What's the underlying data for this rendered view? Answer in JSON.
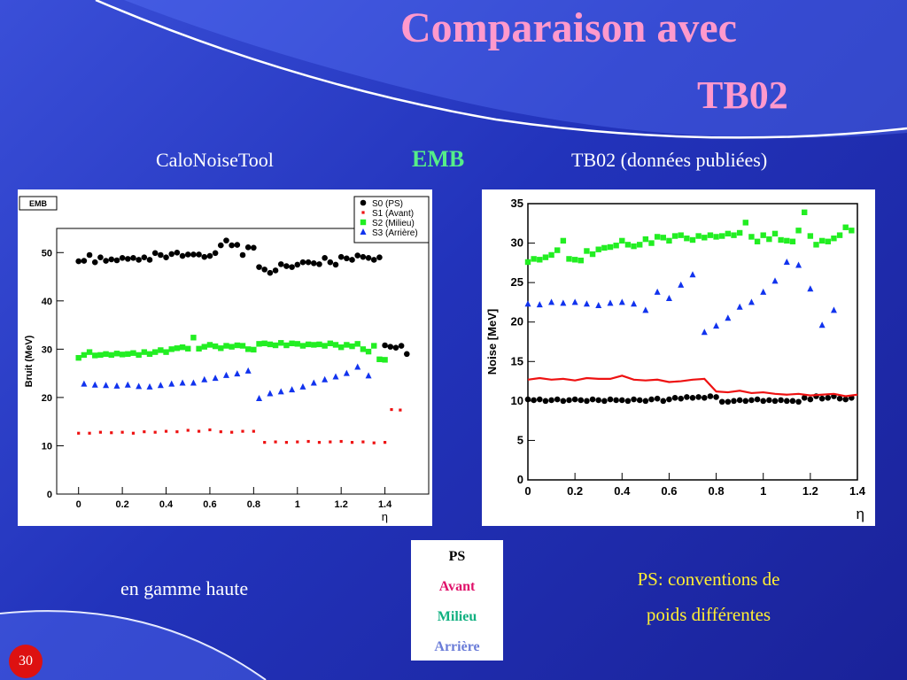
{
  "title_line1": "Comparaison avec",
  "title_line2": "TB02",
  "label_left": "CaloNoiseTool",
  "label_center": "EMB",
  "label_right": "TB02 (données publiées)",
  "note_left": "en gamme haute",
  "note_right": "PS: conventions de poids différentes",
  "legend": {
    "ps": "PS",
    "avant": "Avant",
    "milieu": "Milieu",
    "arriere": "Arrière"
  },
  "page_number": "30",
  "colors": {
    "title": "#ff99cc",
    "emb": "#55ee88",
    "ps": "#000000",
    "avant": "#e0106a",
    "milieu": "#10b080",
    "arriere": "#6a7cd8",
    "note": "#ffee33"
  },
  "chart_data": [
    {
      "type": "scatter",
      "box_label": "EMB",
      "xlabel": "η",
      "ylabel": "Bruit (MeV)",
      "xlim": [
        -0.1,
        1.6
      ],
      "ylim": [
        0,
        55
      ],
      "xticks": [
        "0",
        "0.2",
        "0.4",
        "0.6",
        "0.8",
        "1",
        "1.2",
        "1.4"
      ],
      "yticks": [
        "0",
        "10",
        "20",
        "30",
        "40",
        "50"
      ],
      "legend_position": "top-right",
      "series": [
        {
          "name": "S0 (PS)",
          "marker": "circle",
          "color": "#000000",
          "x": [
            0.0,
            0.025,
            0.05,
            0.075,
            0.1,
            0.125,
            0.15,
            0.175,
            0.2,
            0.225,
            0.25,
            0.275,
            0.3,
            0.325,
            0.35,
            0.375,
            0.4,
            0.425,
            0.45,
            0.475,
            0.5,
            0.525,
            0.55,
            0.575,
            0.6,
            0.625,
            0.65,
            0.675,
            0.7,
            0.725,
            0.75,
            0.775,
            0.8,
            0.825,
            0.85,
            0.875,
            0.9,
            0.925,
            0.95,
            0.975,
            1.0,
            1.025,
            1.05,
            1.075,
            1.1,
            1.125,
            1.15,
            1.175,
            1.2,
            1.225,
            1.25,
            1.275,
            1.3,
            1.325,
            1.35,
            1.375,
            1.4,
            1.425,
            1.45,
            1.475,
            1.5
          ],
          "y": [
            48.2,
            48.3,
            49.5,
            48.0,
            49.0,
            48.3,
            48.6,
            48.4,
            48.9,
            48.7,
            48.9,
            48.5,
            49.0,
            48.5,
            49.9,
            49.5,
            49.0,
            49.7,
            50.0,
            49.3,
            49.6,
            49.6,
            49.6,
            49.1,
            49.3,
            49.9,
            51.5,
            52.5,
            51.5,
            51.6,
            49.5,
            51.1,
            51.0,
            47.0,
            46.5,
            45.8,
            46.3,
            47.6,
            47.2,
            47.0,
            47.5,
            48.0,
            48.0,
            47.8,
            47.6,
            48.9,
            48.0,
            47.5,
            49.1,
            48.8,
            48.5,
            49.4,
            49.1,
            48.9,
            48.5,
            49.0,
            30.8,
            30.5,
            30.3,
            30.7,
            29.0
          ]
        },
        {
          "name": "S1 (Avant)",
          "marker": "dot",
          "color": "#ee1111",
          "x": [
            0.0,
            0.05,
            0.1,
            0.15,
            0.2,
            0.25,
            0.3,
            0.35,
            0.4,
            0.45,
            0.5,
            0.55,
            0.6,
            0.65,
            0.7,
            0.75,
            0.8,
            0.85,
            0.9,
            0.95,
            1.0,
            1.05,
            1.1,
            1.15,
            1.2,
            1.25,
            1.3,
            1.35,
            1.4,
            1.43,
            1.47
          ],
          "y": [
            12.6,
            12.6,
            12.8,
            12.7,
            12.8,
            12.6,
            12.9,
            12.8,
            13.0,
            12.9,
            13.2,
            13.0,
            13.3,
            12.9,
            12.8,
            13.0,
            13.0,
            10.7,
            10.8,
            10.7,
            10.8,
            10.9,
            10.7,
            10.8,
            10.9,
            10.7,
            10.8,
            10.6,
            10.7,
            17.5,
            17.4
          ]
        },
        {
          "name": "S2 (Milieu)",
          "marker": "square",
          "color": "#22ee22",
          "x": [
            0.0,
            0.025,
            0.05,
            0.075,
            0.1,
            0.125,
            0.15,
            0.175,
            0.2,
            0.225,
            0.25,
            0.275,
            0.3,
            0.325,
            0.35,
            0.375,
            0.4,
            0.425,
            0.45,
            0.475,
            0.5,
            0.525,
            0.55,
            0.575,
            0.6,
            0.625,
            0.65,
            0.675,
            0.7,
            0.725,
            0.75,
            0.775,
            0.8,
            0.825,
            0.85,
            0.875,
            0.9,
            0.925,
            0.95,
            0.975,
            1.0,
            1.025,
            1.05,
            1.075,
            1.1,
            1.125,
            1.15,
            1.175,
            1.2,
            1.225,
            1.25,
            1.275,
            1.3,
            1.325,
            1.35,
            1.375,
            1.4
          ],
          "y": [
            28.2,
            28.8,
            29.4,
            28.7,
            28.8,
            29.0,
            28.8,
            29.1,
            28.9,
            29.0,
            29.2,
            28.8,
            29.4,
            29.0,
            29.4,
            29.8,
            29.4,
            30.0,
            30.2,
            30.4,
            30.1,
            32.4,
            30.1,
            30.5,
            30.9,
            30.6,
            30.2,
            30.7,
            30.5,
            30.8,
            30.7,
            30.0,
            29.9,
            31.1,
            31.2,
            31.0,
            30.8,
            31.3,
            30.8,
            31.2,
            31.1,
            30.7,
            31.0,
            30.9,
            31.0,
            30.7,
            31.2,
            30.9,
            30.4,
            30.9,
            30.6,
            31.1,
            30.0,
            29.5,
            30.7,
            27.9,
            27.8
          ]
        },
        {
          "name": "S3 (Arrière)",
          "marker": "triangle",
          "color": "#1133ee",
          "x": [
            0.025,
            0.075,
            0.125,
            0.175,
            0.225,
            0.275,
            0.325,
            0.375,
            0.425,
            0.475,
            0.525,
            0.575,
            0.625,
            0.675,
            0.725,
            0.775,
            0.825,
            0.875,
            0.925,
            0.975,
            1.025,
            1.075,
            1.125,
            1.175,
            1.225,
            1.275,
            1.325
          ],
          "y": [
            22.8,
            22.6,
            22.5,
            22.4,
            22.6,
            22.3,
            22.2,
            22.5,
            22.8,
            23.0,
            23.0,
            23.7,
            24.0,
            24.6,
            24.9,
            25.5,
            19.8,
            20.8,
            21.2,
            21.6,
            22.2,
            23.0,
            23.7,
            24.3,
            25.0,
            26.3,
            24.5
          ]
        }
      ]
    },
    {
      "type": "scatter",
      "xlabel": "η",
      "ylabel": "Noise [MeV]",
      "xlim": [
        0,
        1.4
      ],
      "ylim": [
        0,
        35
      ],
      "xticks": [
        "0",
        "0.2",
        "0.4",
        "0.6",
        "0.8",
        "1",
        "1.2",
        "1.4"
      ],
      "yticks": [
        "0",
        "5",
        "10",
        "15",
        "20",
        "25",
        "30",
        "35"
      ],
      "series": [
        {
          "name": "",
          "marker": "circle",
          "color": "#000000",
          "x": [
            0.0,
            0.025,
            0.05,
            0.075,
            0.1,
            0.125,
            0.15,
            0.175,
            0.2,
            0.225,
            0.25,
            0.275,
            0.3,
            0.325,
            0.35,
            0.375,
            0.4,
            0.425,
            0.45,
            0.475,
            0.5,
            0.525,
            0.55,
            0.575,
            0.6,
            0.625,
            0.65,
            0.675,
            0.7,
            0.725,
            0.75,
            0.775,
            0.8,
            0.825,
            0.85,
            0.875,
            0.9,
            0.925,
            0.95,
            0.975,
            1.0,
            1.025,
            1.05,
            1.075,
            1.1,
            1.125,
            1.15,
            1.175,
            1.2,
            1.225,
            1.25,
            1.275,
            1.3,
            1.325,
            1.35,
            1.375
          ],
          "y": [
            10.2,
            10.1,
            10.2,
            10.0,
            10.1,
            10.2,
            10.0,
            10.1,
            10.2,
            10.1,
            10.0,
            10.2,
            10.1,
            10.0,
            10.2,
            10.1,
            10.1,
            10.0,
            10.2,
            10.1,
            10.0,
            10.2,
            10.3,
            10.0,
            10.2,
            10.4,
            10.3,
            10.5,
            10.4,
            10.5,
            10.4,
            10.6,
            10.5,
            9.9,
            9.9,
            10.0,
            10.1,
            10.0,
            10.1,
            10.2,
            10.0,
            10.1,
            10.0,
            10.1,
            10.0,
            10.0,
            9.9,
            10.4,
            10.2,
            10.6,
            10.3,
            10.4,
            10.6,
            10.3,
            10.2,
            10.4
          ]
        },
        {
          "name": "",
          "marker": "line",
          "color": "#ee1111",
          "x": [
            0.0,
            0.05,
            0.1,
            0.15,
            0.2,
            0.25,
            0.3,
            0.35,
            0.4,
            0.45,
            0.5,
            0.55,
            0.6,
            0.65,
            0.7,
            0.75,
            0.8,
            0.85,
            0.9,
            0.95,
            1.0,
            1.05,
            1.1,
            1.15,
            1.2,
            1.25,
            1.3,
            1.35,
            1.4
          ],
          "y": [
            12.7,
            12.9,
            12.7,
            12.8,
            12.6,
            12.9,
            12.8,
            12.8,
            13.2,
            12.7,
            12.6,
            12.7,
            12.4,
            12.5,
            12.7,
            12.8,
            11.2,
            11.1,
            11.3,
            11.0,
            11.1,
            10.9,
            10.8,
            10.9,
            10.7,
            10.8,
            10.9,
            10.6,
            10.8
          ]
        },
        {
          "name": "",
          "marker": "square",
          "color": "#22ee22",
          "x": [
            0.0,
            0.025,
            0.05,
            0.075,
            0.1,
            0.125,
            0.15,
            0.175,
            0.2,
            0.225,
            0.25,
            0.275,
            0.3,
            0.325,
            0.35,
            0.375,
            0.4,
            0.425,
            0.45,
            0.475,
            0.5,
            0.525,
            0.55,
            0.575,
            0.6,
            0.625,
            0.65,
            0.675,
            0.7,
            0.725,
            0.75,
            0.775,
            0.8,
            0.825,
            0.85,
            0.875,
            0.9,
            0.925,
            0.95,
            0.975,
            1.0,
            1.025,
            1.05,
            1.075,
            1.1,
            1.125,
            1.15,
            1.175,
            1.2,
            1.225,
            1.25,
            1.275,
            1.3,
            1.325,
            1.35,
            1.375
          ],
          "y": [
            27.6,
            28.0,
            27.9,
            28.2,
            28.5,
            29.1,
            30.3,
            28.0,
            27.9,
            27.8,
            29.0,
            28.6,
            29.2,
            29.4,
            29.5,
            29.7,
            30.3,
            29.8,
            29.6,
            29.8,
            30.5,
            30.0,
            30.8,
            30.7,
            30.3,
            30.9,
            31.0,
            30.6,
            30.4,
            30.9,
            30.7,
            31.0,
            30.8,
            30.9,
            31.2,
            31.0,
            31.3,
            32.6,
            30.8,
            30.2,
            31.0,
            30.5,
            31.2,
            30.4,
            30.3,
            30.2,
            31.6,
            33.9,
            30.9,
            29.8,
            30.3,
            30.2,
            30.6,
            31.0,
            32.0,
            31.6
          ]
        },
        {
          "name": "",
          "marker": "triangle",
          "color": "#1133ee",
          "x": [
            0.0,
            0.05,
            0.1,
            0.15,
            0.2,
            0.25,
            0.3,
            0.35,
            0.4,
            0.45,
            0.5,
            0.55,
            0.6,
            0.65,
            0.7,
            0.75,
            0.8,
            0.85,
            0.9,
            0.95,
            1.0,
            1.05,
            1.1,
            1.15,
            1.2,
            1.25,
            1.3
          ],
          "y": [
            22.3,
            22.2,
            22.5,
            22.4,
            22.5,
            22.3,
            22.1,
            22.4,
            22.5,
            22.3,
            21.5,
            23.8,
            23.0,
            24.7,
            26.0,
            18.7,
            19.5,
            20.5,
            21.9,
            22.5,
            23.8,
            25.2,
            27.6,
            27.2,
            24.2,
            19.6,
            21.5
          ]
        }
      ]
    }
  ]
}
